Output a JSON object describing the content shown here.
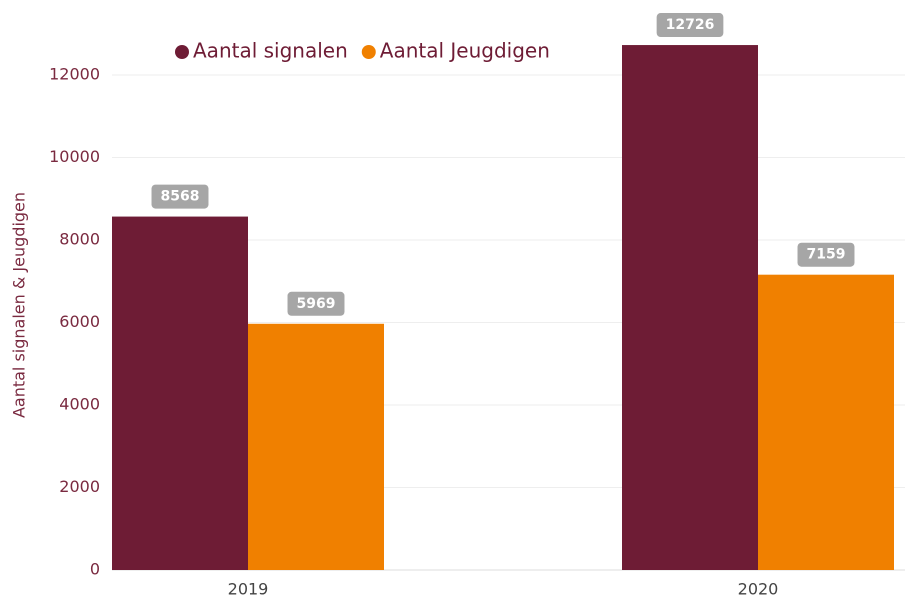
{
  "chart_data": {
    "type": "bar",
    "y_label": "Aantal signalen & Jeugdigen",
    "categories": [
      "2019",
      "2020"
    ],
    "series": [
      {
        "name": "Aantal signalen",
        "color": "#6e1c35",
        "values": [
          8568,
          12726
        ]
      },
      {
        "name": "Aantal Jeugdigen",
        "color": "#f08000",
        "values": [
          5969,
          7159
        ]
      }
    ],
    "ylim": [
      0,
      13000
    ],
    "yticks": [
      0,
      2000,
      4000,
      6000,
      8000,
      10000,
      12000
    ],
    "grid": true,
    "legend": "top"
  }
}
